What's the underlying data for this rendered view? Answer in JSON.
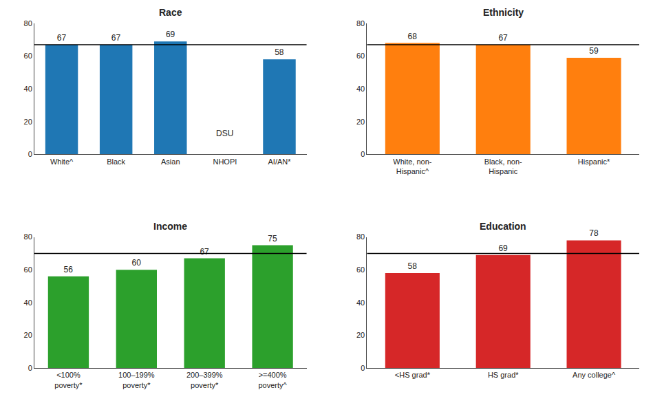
{
  "chart_data": [
    {
      "type": "bar",
      "title": "Race",
      "categories": [
        "White^",
        "Black",
        "Asian",
        "NHOPI",
        "AI/AN*"
      ],
      "values": [
        67,
        67,
        69,
        null,
        58
      ],
      "value_labels": [
        "67",
        "67",
        "69",
        "DSU",
        "58"
      ],
      "data_labels": true,
      "reference_line": 67,
      "ylim": [
        0,
        80
      ],
      "yticks": [
        0,
        20,
        40,
        60,
        80
      ],
      "grid": false
    },
    {
      "type": "bar",
      "title": "Ethnicity",
      "categories": [
        "White, non-\nHispanic^",
        "Black, non-\nHispanic",
        "Hispanic*"
      ],
      "values": [
        68,
        67,
        59
      ],
      "data_labels": true,
      "reference_line": 67,
      "ylim": [
        0,
        80
      ],
      "yticks": [
        0,
        20,
        40,
        60,
        80
      ],
      "grid": false
    },
    {
      "type": "bar",
      "title": "Income",
      "categories": [
        "<100%\npoverty*",
        "100–199%\npoverty*",
        "200–399%\npoverty*",
        ">=400%\npoverty^"
      ],
      "values": [
        56,
        60,
        67,
        75
      ],
      "data_labels": true,
      "reference_line": 70,
      "ylim": [
        0,
        80
      ],
      "yticks": [
        0,
        20,
        40,
        60,
        80
      ],
      "grid": false
    },
    {
      "type": "bar",
      "title": "Education",
      "categories": [
        "<HS grad*",
        "HS grad*",
        "Any college^"
      ],
      "values": [
        58,
        69,
        78
      ],
      "data_labels": true,
      "reference_line": 70,
      "ylim": [
        0,
        80
      ],
      "yticks": [
        0,
        20,
        40,
        60,
        80
      ],
      "grid": false
    }
  ]
}
